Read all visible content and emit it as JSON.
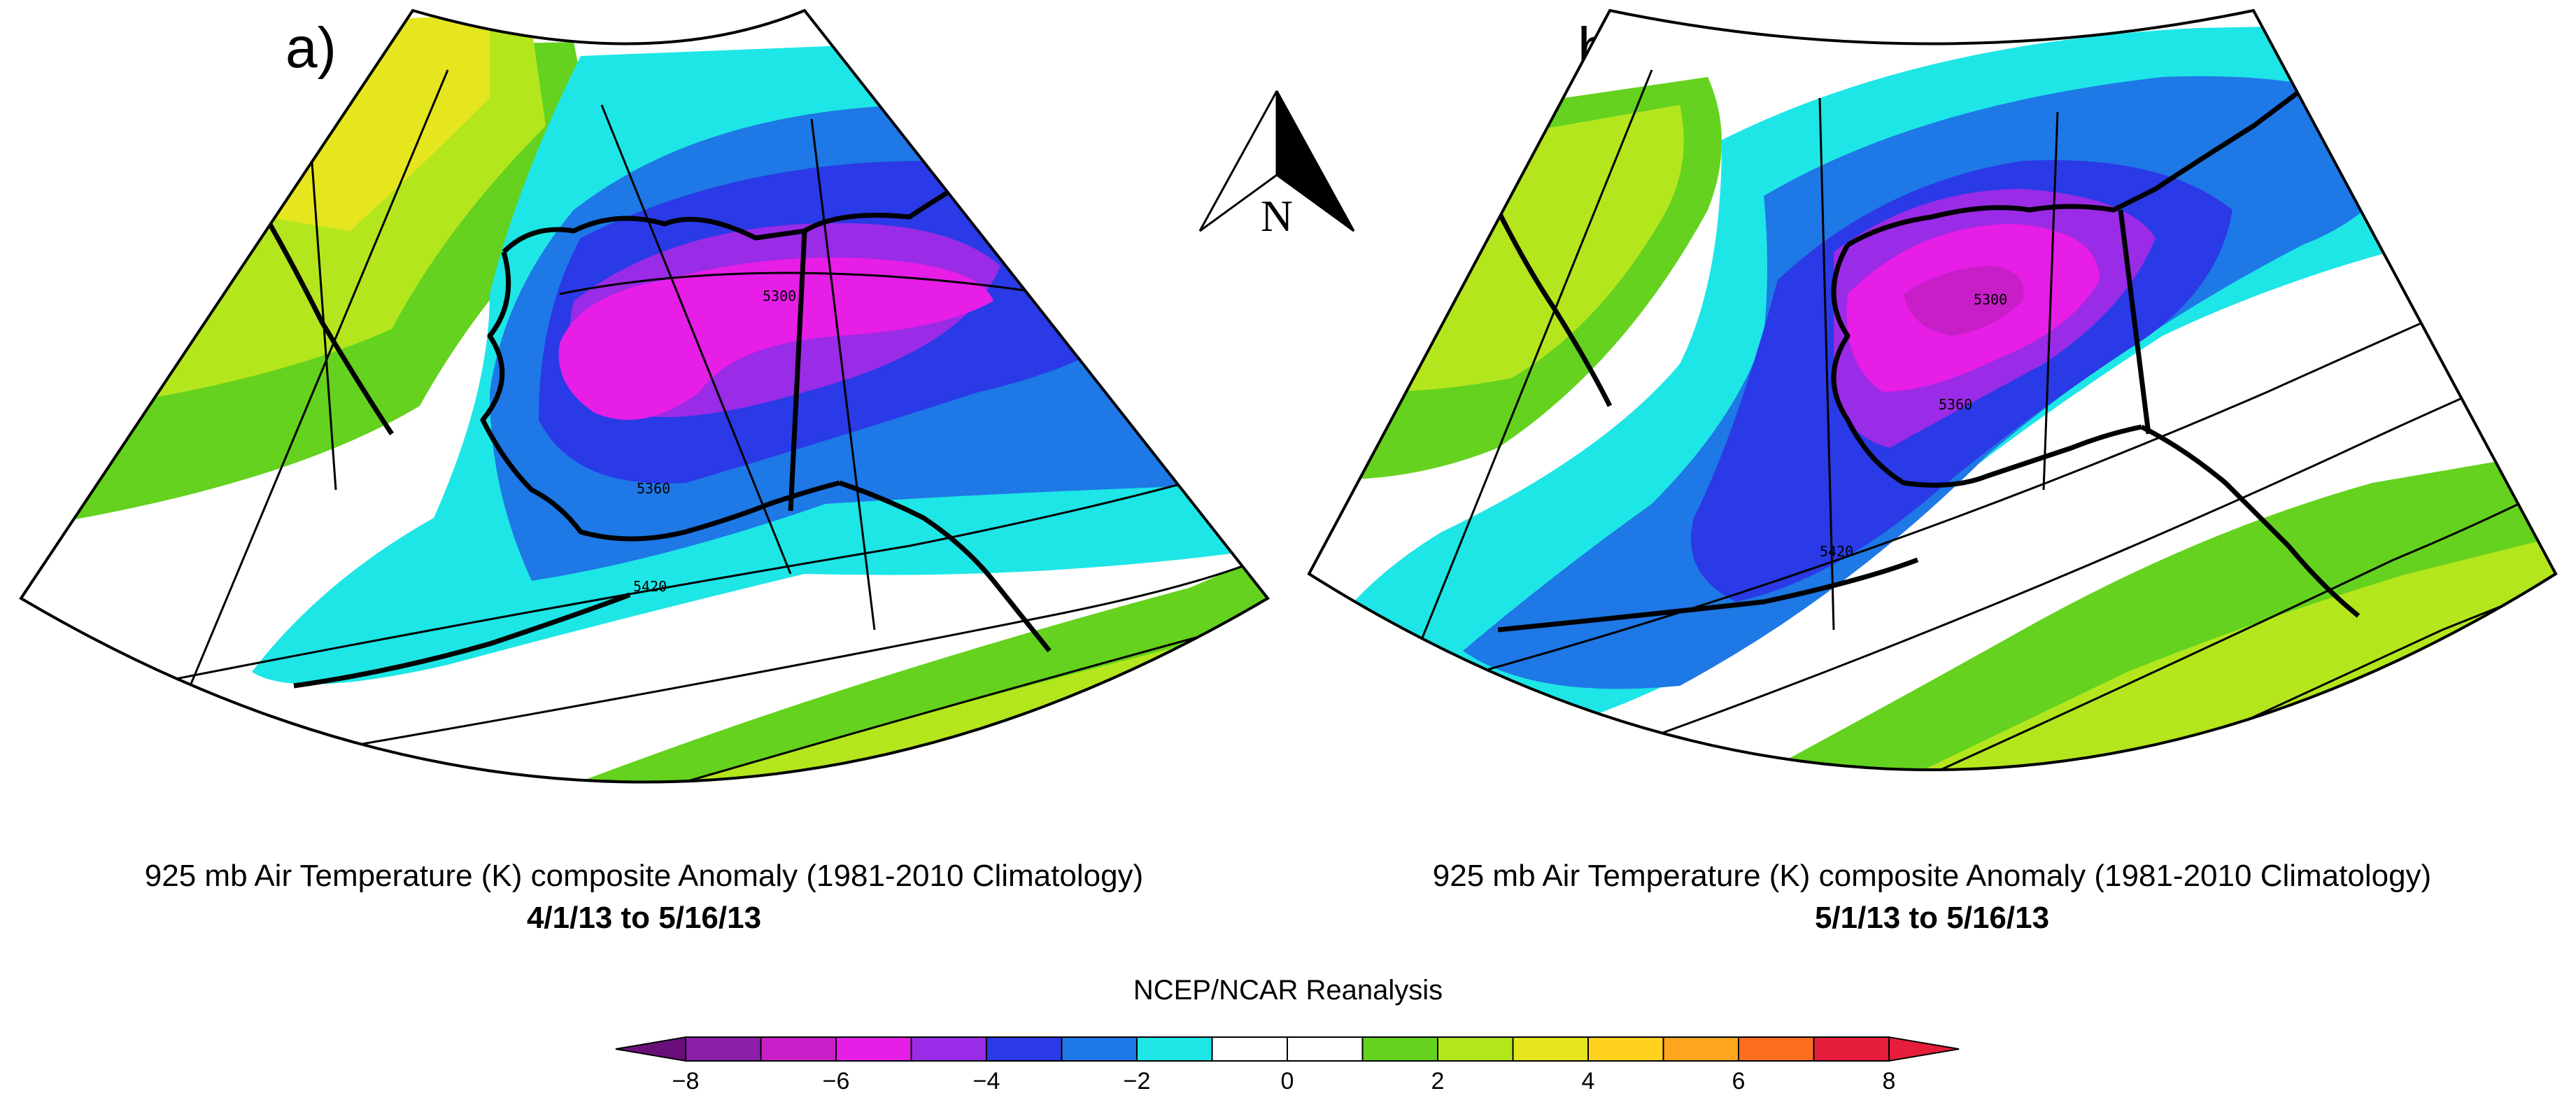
{
  "panels": [
    {
      "label": "a)",
      "caption_title": "925 mb Air Temperature (K) composite Anomaly (1981-2010 Climatology)",
      "caption_dates": "4/1/13 to 5/16/13",
      "contour_labels": [
        "5300",
        "5360",
        "5420"
      ]
    },
    {
      "label": "b)",
      "caption_title": "925 mb Air Temperature (K) composite Anomaly (1981-2010 Climatology)",
      "caption_dates": "5/1/13 to 5/16/13",
      "contour_labels": [
        "5300",
        "5360",
        "5420"
      ]
    }
  ],
  "compass": {
    "label": "N"
  },
  "colorbar": {
    "title": "NCEP/NCAR Reanalysis",
    "units": "K",
    "ticks": [
      "-8",
      "-6",
      "-4",
      "-2",
      "0",
      "2",
      "4",
      "6",
      "8"
    ],
    "colors": [
      "#8a1fa8",
      "#c81ec8",
      "#e61ee6",
      "#9a2be6",
      "#2a3ae6",
      "#1e78e6",
      "#1ee6e6",
      "#ffffff",
      "#ffffff",
      "#64d21e",
      "#b4e61e",
      "#e6e61e",
      "#ffd21e",
      "#ffa61e",
      "#ff6e1e",
      "#e61e3c"
    ]
  },
  "legend_colors": {
    "below_minus6": "#e61ee6",
    "minus6_to_minus4": "#9a2be6",
    "minus4_to_minus2": "#2a3ae6",
    "minus2_to_0": "#1ee6e6",
    "0_to_2": "#ffffff",
    "2_to_3": "#64d21e",
    "3_to_4": "#b4e61e",
    "above_4": "#e6e61e",
    "above_5": "#ffd21e",
    "above_6": "#ffa61e"
  }
}
